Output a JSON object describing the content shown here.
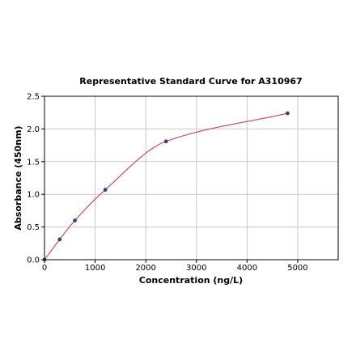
{
  "chart_data": {
    "type": "scatter",
    "title": "Representative Standard Curve for A310967",
    "xlabel": "Concentration (ng/L)",
    "ylabel": "Absorbance (450nm)",
    "xlim": [
      0,
      5800
    ],
    "ylim": [
      0,
      2.5
    ],
    "x_ticks": [
      0,
      1000,
      2000,
      3000,
      4000,
      5000
    ],
    "y_ticks": [
      0.0,
      0.5,
      1.0,
      1.5,
      2.0,
      2.5
    ],
    "x_tick_labels": [
      "0",
      "1000",
      "2000",
      "3000",
      "4000",
      "5000"
    ],
    "y_tick_labels": [
      "0.0",
      "0.5",
      "1.0",
      "1.5",
      "2.0",
      "2.5"
    ],
    "grid": true,
    "series": [
      {
        "x": [
          0,
          300,
          600,
          1200,
          2400,
          4800
        ],
        "y": [
          0.0,
          0.31,
          0.6,
          1.07,
          1.81,
          2.24
        ],
        "marker_color": "#3a3f7a",
        "curve_color": "#c0506a"
      }
    ]
  }
}
